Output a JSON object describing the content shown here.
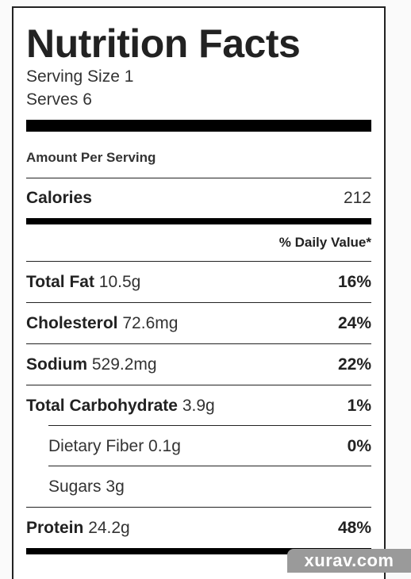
{
  "label": {
    "title": "Nutrition Facts",
    "serving_size": "Serving Size 1",
    "serves": "Serves 6",
    "amount_per_serving": "Amount Per Serving",
    "calories_label": "Calories",
    "calories_value": "212",
    "daily_value_header": "% Daily Value*",
    "nutrients": [
      {
        "name": "Total Fat",
        "amount": "10.5g",
        "pct": "16%"
      },
      {
        "name": "Cholesterol",
        "amount": "72.6mg",
        "pct": "24%"
      },
      {
        "name": "Sodium",
        "amount": "529.2mg",
        "pct": "22%"
      },
      {
        "name": "Total Carbohydrate",
        "amount": "3.9g",
        "pct": "1%"
      },
      {
        "name": "Dietary Fiber",
        "amount": "0.1g",
        "pct": "0%"
      },
      {
        "name": "Sugars",
        "amount": "3g",
        "pct": ""
      },
      {
        "name": "Protein",
        "amount": "24.2g",
        "pct": "48%"
      }
    ]
  },
  "watermark": "xurav.com"
}
